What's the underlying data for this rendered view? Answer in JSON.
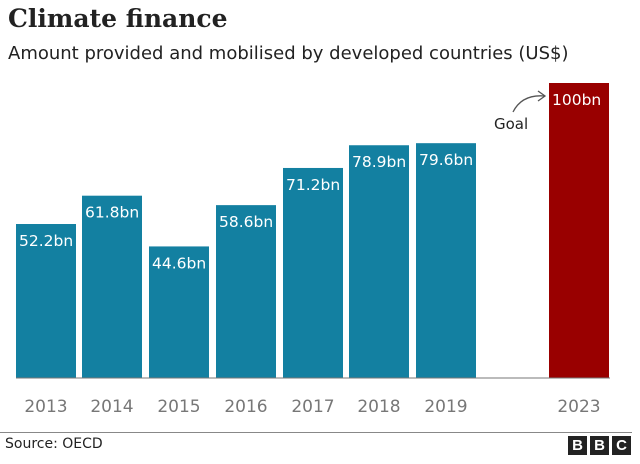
{
  "header": {
    "title": "Climate finance",
    "subtitle": "Amount provided and mobilised by developed countries (US$)"
  },
  "footer": {
    "source": "Source: OECD",
    "logo": "BBC"
  },
  "chart_data": {
    "type": "bar",
    "categories": [
      "2013",
      "2014",
      "2015",
      "2016",
      "2017",
      "2018",
      "2019",
      "2023"
    ],
    "values": [
      52.2,
      61.8,
      44.6,
      58.6,
      71.2,
      78.9,
      79.6,
      100
    ],
    "data_labels": [
      "52.2bn",
      "61.8bn",
      "44.6bn",
      "58.6bn",
      "71.2bn",
      "78.9bn",
      "79.6bn",
      "100bn"
    ],
    "colors": [
      "#1380a1",
      "#1380a1",
      "#1380a1",
      "#1380a1",
      "#1380a1",
      "#1380a1",
      "#1380a1",
      "#990000"
    ],
    "annotation": "Goal",
    "ylim": [
      0,
      100
    ],
    "grid": false,
    "title": "Climate finance",
    "subtitle": "Amount provided and mobilised by developed countries (US$)"
  }
}
